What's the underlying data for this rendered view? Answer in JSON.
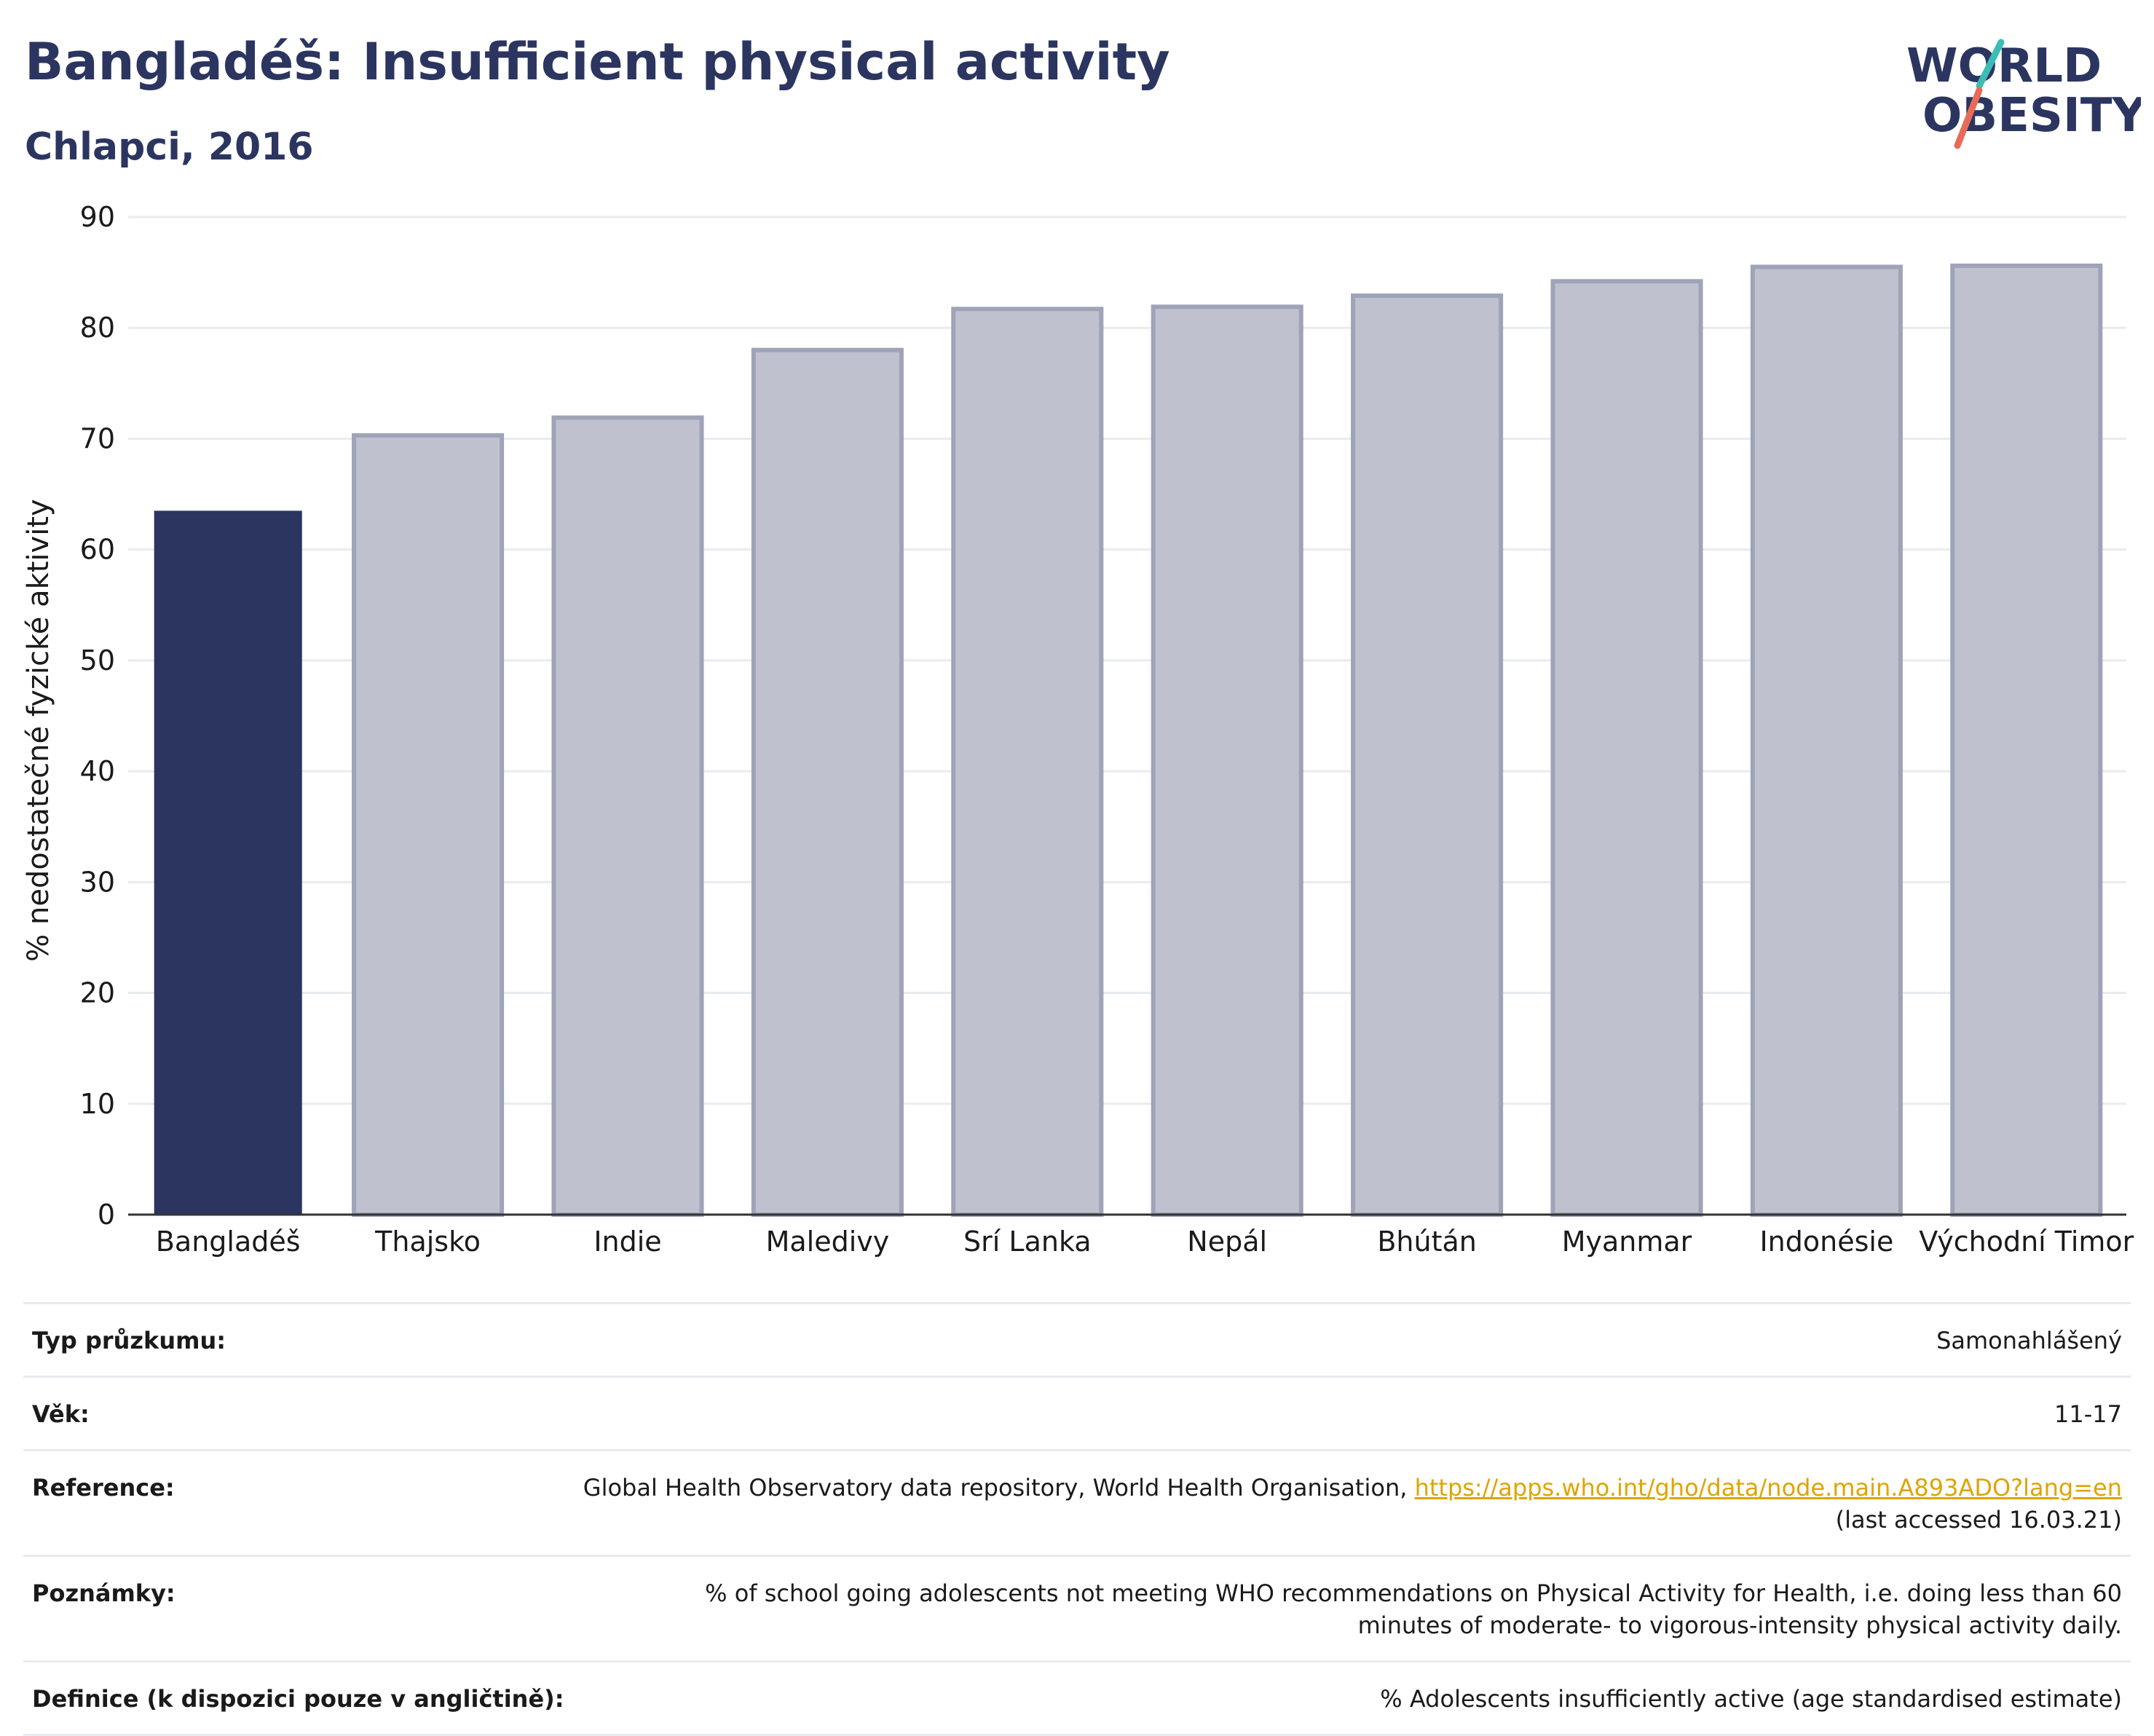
{
  "header": {
    "title": "Bangladéš: Insufficient physical activity",
    "subtitle": "Chlapci, 2016"
  },
  "logo": {
    "line1": "WORLD",
    "line2": "OBESITY",
    "icon": "world-obesity-logo"
  },
  "colors": {
    "highlight": "#2b3560",
    "bar": "#bfc2ce",
    "bar_border": "#9ea3b8",
    "text_dark": "#2b3560",
    "link": "#e0a400"
  },
  "chart_data": {
    "type": "bar",
    "categories": [
      "Bangladéš",
      "Thajsko",
      "Indie",
      "Maledivy",
      "Srí Lanka",
      "Nepál",
      "Bhútán",
      "Myanmar",
      "Indonésie",
      "Východní Timor"
    ],
    "values": [
      63.5,
      70.3,
      71.9,
      78.0,
      81.7,
      81.9,
      82.9,
      84.2,
      85.5,
      85.6
    ],
    "highlight_category": "Bangladéš",
    "ylabel": "% nedostatečné fyzické aktivity",
    "ylim": [
      0,
      90
    ],
    "yticks": [
      0,
      10,
      20,
      30,
      40,
      50,
      60,
      70,
      80,
      90
    ],
    "grid": true,
    "legend": "none"
  },
  "info": {
    "rows": [
      {
        "label": "Typ průzkumu:",
        "value": "Samonahlášený"
      },
      {
        "label": "Věk:",
        "value": "11-17"
      },
      {
        "label": "Reference:",
        "value": "Global Health Observatory data repository, World Health Organisation, ",
        "link": "https://apps.who.int/gho/data/node.main.A893ADO?lang=en",
        "value2": "(last accessed 16.03.21)"
      },
      {
        "label": "Poznámky:",
        "value": "% of school going adolescents not meeting WHO recommendations on Physical Activity for Health, i.e. doing less than 60 minutes of moderate- to vigorous-intensity physical activity daily."
      },
      {
        "label": "Definice (k dispozici pouze v angličtině):",
        "value": "% Adolescents insufficiently active (age standardised estimate)"
      }
    ]
  }
}
